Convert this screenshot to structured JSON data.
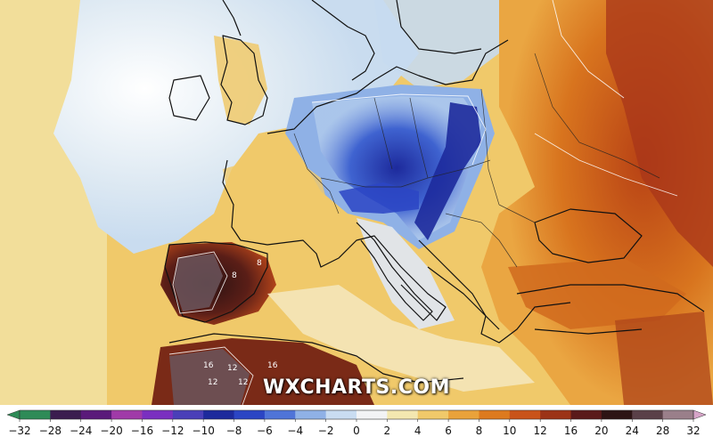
{
  "watermark": "WXCHARTS.COM",
  "colorbar": {
    "ticks": [
      -32,
      -28,
      -24,
      -20,
      -16,
      -12,
      -10,
      -8,
      -6,
      -4,
      -2,
      0,
      2,
      4,
      6,
      8,
      10,
      12,
      16,
      20,
      24,
      28,
      32
    ],
    "colors": {
      "-32": "#2e8b57",
      "-28": "#3b1d4f",
      "-24": "#5a1a7a",
      "-20": "#a03aa8",
      "-16": "#7a2fc0",
      "-12": "#4a3fb8",
      "-10": "#1d2a9c",
      "-8": "#2b45c4",
      "-6": "#4f74d8",
      "-4": "#8fb1e6",
      "-2": "#c9dcf1",
      "0": "#f2f3f5",
      "2": "#f3e7b0",
      "4": "#f0c96a",
      "6": "#e9a23a",
      "8": "#dd7a1e",
      "10": "#c9531a",
      "12": "#9c3316",
      "16": "#5a1a1a",
      "20": "#2d1414",
      "24": "#5a4048",
      "28": "#9a7f8a",
      "32": "#d6a4c8"
    }
  },
  "map": {
    "background_color": "#f0c96a",
    "contour_labels": [
      "8",
      "8",
      "16",
      "12",
      "12",
      "16",
      "12"
    ]
  }
}
